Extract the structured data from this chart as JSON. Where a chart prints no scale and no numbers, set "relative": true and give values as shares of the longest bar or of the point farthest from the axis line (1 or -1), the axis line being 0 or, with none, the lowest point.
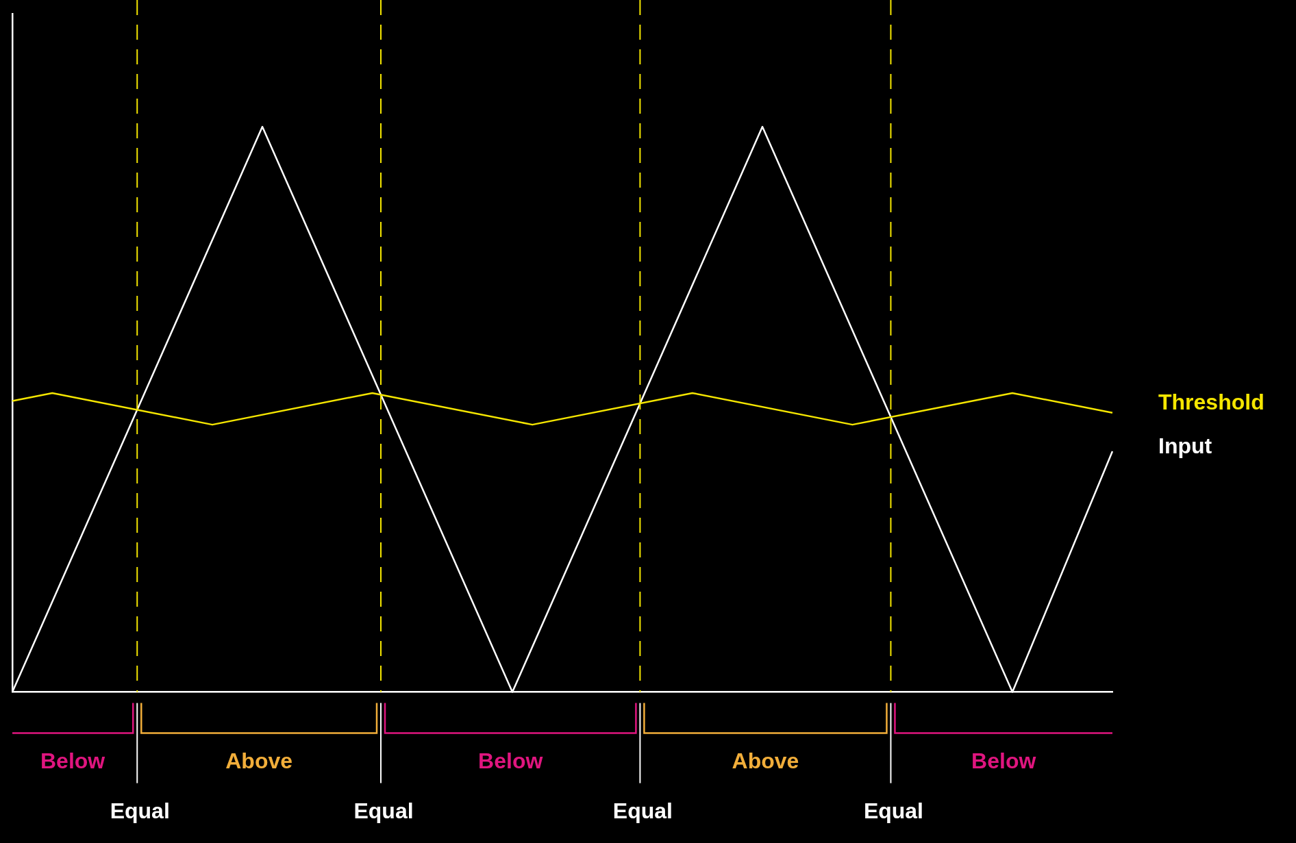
{
  "chart_data": {
    "type": "line",
    "relative": true,
    "legend": false,
    "marker": "none",
    "categories": [
      null,
      null,
      null,
      null,
      null,
      null,
      null,
      null,
      null,
      null,
      null,
      null,
      null,
      null,
      null,
      null,
      null,
      null,
      null,
      null,
      null,
      null,
      null,
      null,
      null,
      null,
      null,
      null,
      null,
      null,
      null,
      null,
      null,
      null,
      null,
      null,
      null,
      null,
      null,
      null,
      null,
      null,
      null,
      null,
      null,
      null,
      null,
      null,
      null,
      null,
      null,
      null,
      null,
      null,
      null,
      null,
      null,
      null,
      null,
      null,
      null,
      null,
      null,
      null,
      null,
      null,
      null,
      null,
      null,
      null,
      null,
      null,
      null,
      null,
      null,
      null,
      null,
      null,
      null,
      null,
      null,
      null,
      null,
      null,
      null,
      null,
      null,
      null,
      null,
      null,
      null,
      null,
      null,
      null,
      null,
      null,
      null,
      null,
      null,
      null,
      null,
      null,
      null,
      null,
      null,
      null,
      null,
      null,
      null,
      null,
      null
    ],
    "series": [
      {
        "name": "Threshold",
        "color": "#f5e600",
        "values": [
          0.515,
          null,
          null,
          null,
          0.529,
          null,
          null,
          null,
          null,
          null,
          null,
          null,
          null,
          null,
          null,
          null,
          null,
          null,
          null,
          null,
          0.473,
          null,
          null,
          null,
          null,
          null,
          null,
          null,
          null,
          null,
          null,
          null,
          null,
          null,
          null,
          null,
          0.529,
          null,
          null,
          null,
          null,
          null,
          null,
          null,
          null,
          null,
          null,
          null,
          null,
          null,
          null,
          null,
          0.473,
          null,
          null,
          null,
          null,
          null,
          null,
          null,
          null,
          null,
          null,
          null,
          null,
          null,
          null,
          null,
          0.529,
          null,
          null,
          null,
          null,
          null,
          null,
          null,
          null,
          null,
          null,
          null,
          null,
          null,
          null,
          null,
          0.473,
          null,
          null,
          null,
          null,
          null,
          null,
          null,
          null,
          null,
          null,
          null,
          null,
          null,
          null,
          null,
          0.529,
          null,
          null,
          null,
          null,
          null,
          null,
          null,
          null,
          null,
          0.494
        ]
      },
      {
        "name": "Input",
        "color": "#ffffff",
        "values": [
          0,
          null,
          null,
          null,
          null,
          null,
          null,
          null,
          null,
          null,
          null,
          null,
          null,
          null,
          null,
          null,
          null,
          null,
          null,
          null,
          null,
          null,
          null,
          null,
          null,
          1,
          null,
          null,
          null,
          null,
          null,
          null,
          null,
          null,
          null,
          null,
          null,
          null,
          null,
          null,
          null,
          null,
          null,
          null,
          null,
          null,
          null,
          null,
          null,
          null,
          0,
          null,
          null,
          null,
          null,
          null,
          null,
          null,
          null,
          null,
          null,
          null,
          null,
          null,
          null,
          null,
          null,
          null,
          null,
          null,
          null,
          null,
          null,
          null,
          null,
          1,
          null,
          null,
          null,
          null,
          null,
          null,
          null,
          null,
          null,
          null,
          null,
          null,
          null,
          null,
          null,
          null,
          null,
          null,
          null,
          null,
          null,
          null,
          null,
          null,
          0,
          null,
          null,
          null,
          null,
          null,
          null,
          null,
          null,
          null,
          0.426
        ]
      }
    ],
    "annotations": [
      "Below",
      "Above",
      "Below",
      "Above",
      "Below",
      "Equal",
      "Equal",
      "Equal",
      "Equal"
    ]
  }
}
